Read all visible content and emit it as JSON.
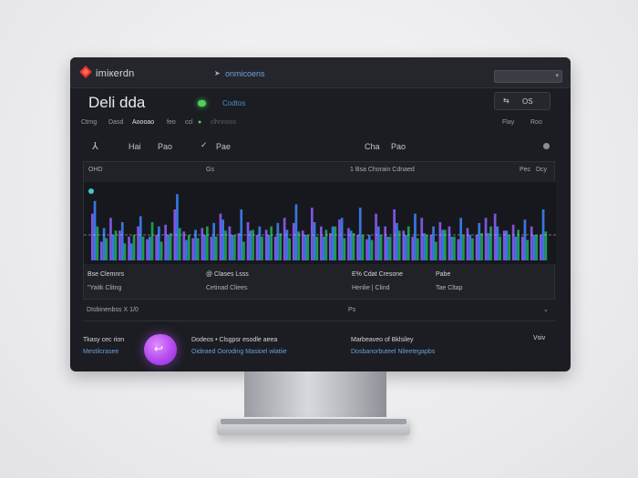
{
  "app": {
    "name": "imiкerdn",
    "nav_link": "onmicoens",
    "search_placeholder": ""
  },
  "header": {
    "title": "Deli dda",
    "status_label": "Codtos",
    "button_label": "OS"
  },
  "tabs": [
    "Ctrng",
    "Dasd",
    "Aoooao",
    "feo",
    "ccl",
    "",
    "clhnnoos"
  ],
  "tabs_right": [
    "Flay",
    "Roo"
  ],
  "toolbar": {
    "items": [
      "Hai",
      "Pao",
      "Pae",
      "Cha",
      "Pao"
    ]
  },
  "panel": {
    "left_label": "OHD",
    "mid_label": "Gs",
    "center_label": "1 Bsa Chorain Cdnaed",
    "right_labels": [
      "Pec",
      "Dcy"
    ]
  },
  "chart_data": {
    "type": "bar",
    "series": [
      {
        "name": "",
        "color": "#8b5cf6",
        "values": [
          55,
          22,
          50,
          35,
          28,
          40,
          25,
          30,
          42,
          60,
          34,
          26,
          38,
          28,
          55,
          40,
          32,
          45,
          30,
          36,
          28,
          50,
          44,
          35,
          62,
          40,
          32,
          48,
          38,
          30,
          25,
          55,
          40,
          60,
          35,
          28,
          50,
          30,
          45,
          40,
          25,
          38,
          30,
          50,
          55,
          35,
          42,
          28,
          40,
          30
        ]
      },
      {
        "name": "",
        "color": "#3b82f6",
        "values": [
          70,
          38,
          30,
          45,
          20,
          52,
          28,
          40,
          30,
          78,
          24,
          36,
          30,
          44,
          48,
          30,
          60,
          35,
          40,
          30,
          44,
          36,
          66,
          30,
          45,
          28,
          40,
          50,
          35,
          62,
          30,
          40,
          28,
          44,
          30,
          55,
          32,
          40,
          36,
          28,
          50,
          30,
          44,
          32,
          40,
          35,
          28,
          48,
          30,
          60
        ]
      },
      {
        "name": "",
        "color": "#22c55e",
        "values": [
          40,
          26,
          35,
          20,
          30,
          28,
          45,
          22,
          32,
          38,
          30,
          26,
          40,
          28,
          35,
          30,
          22,
          36,
          28,
          40,
          32,
          26,
          34,
          30,
          28,
          36,
          40,
          26,
          32,
          30,
          24,
          30,
          28,
          35,
          40,
          26,
          30,
          22,
          36,
          28,
          30,
          26,
          32,
          40,
          28,
          30,
          36,
          24,
          30,
          34
        ]
      }
    ],
    "threshold": 30
  },
  "stats": [
    {
      "title": "Bse Clemnrs",
      "value": "\"Yaitk Clitng"
    },
    {
      "title": "@ Clases Lsss",
      "value": "Cetinad Cliees"
    },
    {
      "title": "E% Cdat Cresone",
      "value": "Henlie | Clind"
    },
    {
      "title": "Pabe",
      "value": "Tae Cltap"
    }
  ],
  "footer": {
    "left": "DIsbinenbss X 1/0",
    "mid": "Ps"
  },
  "bottom": {
    "left_title": "Tkasy cec rion",
    "left_sub": "Mestilcrasee",
    "mid_title": "Dodeos • Clsgpsr esodle aeea",
    "mid_sub": "Oideaed Ooroding Masioel wlatiie",
    "right_title": "Marbeaveo of Bklsiley",
    "right_sub": "Dosbanorbuteel Nileetegapbs",
    "right_corner": "Vsiv"
  }
}
